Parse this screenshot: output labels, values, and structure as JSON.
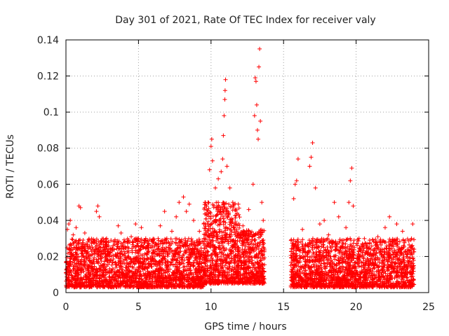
{
  "chart_data": {
    "type": "scatter",
    "title": "Day 301 of 2021, Rate Of TEC Index for receiver valy",
    "xlabel": "GPS time / hours",
    "ylabel": "ROTI / TECUs",
    "xlim": [
      0,
      25
    ],
    "ylim": [
      0,
      0.14
    ],
    "x_ticks": [
      0,
      5,
      10,
      15,
      20,
      25
    ],
    "x_tick_labels": [
      "0",
      "5",
      "10",
      "15",
      "20",
      "25"
    ],
    "y_ticks": [
      0,
      0.02,
      0.04,
      0.06,
      0.08,
      0.1,
      0.12,
      0.14
    ],
    "y_tick_labels": [
      "0",
      "0.02",
      "0.04",
      "0.06",
      "0.08",
      "0.1",
      "0.12",
      "0.14"
    ],
    "grid": true,
    "marker": "+",
    "series": [
      {
        "name": "ROTI",
        "color": "#ff0000",
        "points": [
          [
            0.1,
            0.035
          ],
          [
            0.2,
            0.038
          ],
          [
            0.3,
            0.04
          ],
          [
            0.5,
            0.032
          ],
          [
            0.7,
            0.036
          ],
          [
            0.9,
            0.048
          ],
          [
            1.0,
            0.047
          ],
          [
            1.3,
            0.033
          ],
          [
            1.6,
            0.029
          ],
          [
            2.1,
            0.045
          ],
          [
            2.2,
            0.048
          ],
          [
            2.3,
            0.042
          ],
          [
            2.8,
            0.03
          ],
          [
            3.6,
            0.037
          ],
          [
            3.8,
            0.033
          ],
          [
            4.5,
            0.031
          ],
          [
            4.8,
            0.038
          ],
          [
            5.2,
            0.036
          ],
          [
            5.5,
            0.03
          ],
          [
            6.0,
            0.029
          ],
          [
            6.5,
            0.037
          ],
          [
            6.8,
            0.045
          ],
          [
            7.3,
            0.034
          ],
          [
            7.6,
            0.042
          ],
          [
            7.8,
            0.05
          ],
          [
            8.1,
            0.053
          ],
          [
            8.3,
            0.045
          ],
          [
            8.5,
            0.049
          ],
          [
            8.8,
            0.04
          ],
          [
            9.2,
            0.034
          ],
          [
            9.5,
            0.038
          ],
          [
            9.8,
            0.05
          ],
          [
            9.9,
            0.068
          ],
          [
            10.0,
            0.081
          ],
          [
            10.05,
            0.085
          ],
          [
            10.1,
            0.073
          ],
          [
            10.3,
            0.058
          ],
          [
            10.5,
            0.063
          ],
          [
            10.7,
            0.067
          ],
          [
            10.8,
            0.074
          ],
          [
            10.85,
            0.087
          ],
          [
            10.9,
            0.098
          ],
          [
            10.95,
            0.107
          ],
          [
            10.97,
            0.112
          ],
          [
            11.0,
            0.118
          ],
          [
            11.1,
            0.07
          ],
          [
            11.3,
            0.058
          ],
          [
            11.5,
            0.05
          ],
          [
            11.8,
            0.044
          ],
          [
            12.2,
            0.037
          ],
          [
            12.6,
            0.046
          ],
          [
            12.9,
            0.06
          ],
          [
            13.0,
            0.098
          ],
          [
            13.05,
            0.119
          ],
          [
            13.1,
            0.117
          ],
          [
            13.15,
            0.104
          ],
          [
            13.2,
            0.09
          ],
          [
            13.25,
            0.085
          ],
          [
            13.3,
            0.125
          ],
          [
            13.35,
            0.135
          ],
          [
            13.4,
            0.095
          ],
          [
            13.5,
            0.05
          ],
          [
            13.6,
            0.04
          ],
          [
            15.7,
            0.052
          ],
          [
            15.8,
            0.06
          ],
          [
            15.9,
            0.062
          ],
          [
            16.0,
            0.074
          ],
          [
            16.3,
            0.035
          ],
          [
            16.8,
            0.07
          ],
          [
            16.9,
            0.075
          ],
          [
            17.0,
            0.083
          ],
          [
            17.2,
            0.058
          ],
          [
            17.5,
            0.038
          ],
          [
            17.8,
            0.04
          ],
          [
            18.1,
            0.032
          ],
          [
            18.5,
            0.05
          ],
          [
            18.8,
            0.042
          ],
          [
            19.3,
            0.036
          ],
          [
            19.5,
            0.05
          ],
          [
            19.6,
            0.062
          ],
          [
            19.7,
            0.069
          ],
          [
            19.8,
            0.048
          ],
          [
            20.2,
            0.03
          ],
          [
            20.8,
            0.027
          ],
          [
            21.5,
            0.031
          ],
          [
            22.0,
            0.036
          ],
          [
            22.3,
            0.042
          ],
          [
            22.8,
            0.038
          ],
          [
            23.2,
            0.034
          ],
          [
            23.9,
            0.038
          ]
        ],
        "bands": [
          {
            "x_range": [
              0,
              9.5
            ],
            "y_range": [
              0.003,
              0.03
            ],
            "points_per_hour": 220
          },
          {
            "x_range": [
              9.5,
              12.0
            ],
            "y_range": [
              0.005,
              0.05
            ],
            "points_per_hour": 300
          },
          {
            "x_range": [
              12.0,
              13.7
            ],
            "y_range": [
              0.005,
              0.035
            ],
            "points_per_hour": 250
          },
          {
            "x_range": [
              15.5,
              24.0
            ],
            "y_range": [
              0.003,
              0.03
            ],
            "points_per_hour": 220
          }
        ]
      }
    ]
  }
}
